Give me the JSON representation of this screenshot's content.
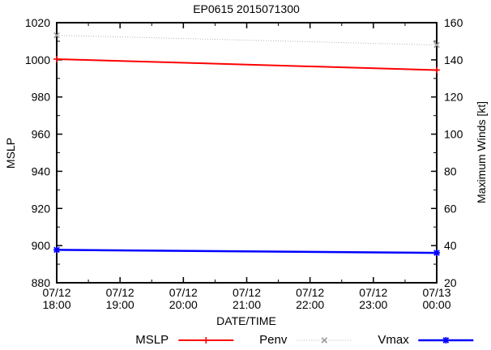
{
  "chart_data": {
    "type": "line",
    "title": "EP0615 2015071300",
    "grid": false,
    "legend_position": "bottom-center",
    "x_axis": {
      "label": "DATE/TIME",
      "tick_labels": [
        [
          "07/12",
          "18:00"
        ],
        [
          "07/12",
          "19:00"
        ],
        [
          "07/12",
          "20:00"
        ],
        [
          "07/12",
          "21:00"
        ],
        [
          "07/12",
          "22:00"
        ],
        [
          "07/12",
          "23:00"
        ],
        [
          "07/13",
          "00:00"
        ]
      ],
      "minor_ticks_between": 1
    },
    "left_axis": {
      "label": "MSLP",
      "min": 880,
      "max": 1020,
      "major_step": 20,
      "minor_step": 10,
      "tick_labels": [
        "880",
        "900",
        "920",
        "940",
        "960",
        "980",
        "1000",
        "1020"
      ]
    },
    "right_axis": {
      "label": "Maximum Winds [kt]",
      "min": 20,
      "max": 160,
      "major_step": 20,
      "minor_step": 10,
      "tick_labels": [
        "20",
        "40",
        "60",
        "80",
        "100",
        "120",
        "140",
        "160"
      ]
    },
    "x": [
      "07/12 18:00",
      "07/13 00:00"
    ],
    "series": [
      {
        "name": "MSLP",
        "axis": "left",
        "color": "#ff0000",
        "line_style": "solid",
        "line_width": 2,
        "marker": "plus",
        "values": [
          1000.4,
          994.5
        ]
      },
      {
        "name": "Penv",
        "axis": "left",
        "color": "#b3b3b3",
        "marker_color": "#999999",
        "line_style": "dotted",
        "line_width": 1,
        "marker": "cross",
        "values": [
          1013.2,
          1008.0
        ]
      },
      {
        "name": "Vmax",
        "axis": "right",
        "color": "#0000ff",
        "line_style": "solid",
        "line_width": 2.5,
        "marker": "star",
        "values": [
          37.7,
          36.1
        ]
      }
    ]
  },
  "colors": {
    "axis": "#000000",
    "background": "#ffffff",
    "mslp": "#ff0000",
    "penv": "#b3b3b3",
    "vmax": "#0000ff"
  }
}
